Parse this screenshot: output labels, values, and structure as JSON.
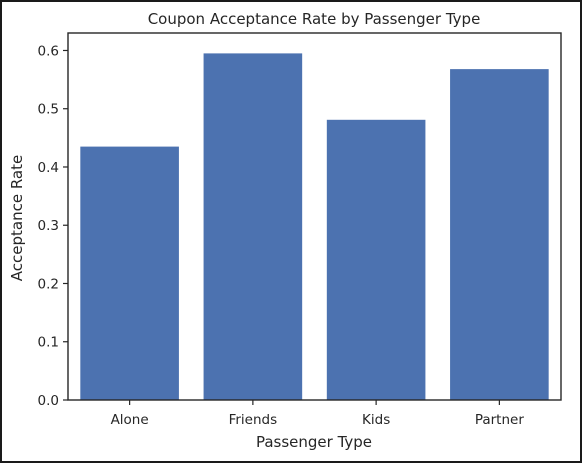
{
  "chart_data": {
    "type": "bar",
    "title": "Coupon Acceptance Rate by Passenger Type",
    "xlabel": "Passenger Type",
    "ylabel": "Acceptance Rate",
    "categories": [
      "Alone",
      "Friends",
      "Kids",
      "Partner"
    ],
    "values": [
      0.435,
      0.595,
      0.481,
      0.568
    ],
    "ylim": [
      0,
      0.63
    ],
    "yticks": [
      0.0,
      0.1,
      0.2,
      0.3,
      0.4,
      0.5,
      0.6
    ],
    "ytick_labels": [
      "0.0",
      "0.1",
      "0.2",
      "0.3",
      "0.4",
      "0.5",
      "0.6"
    ],
    "bar_color": "#4c72b0",
    "grid": false,
    "legend": false
  }
}
